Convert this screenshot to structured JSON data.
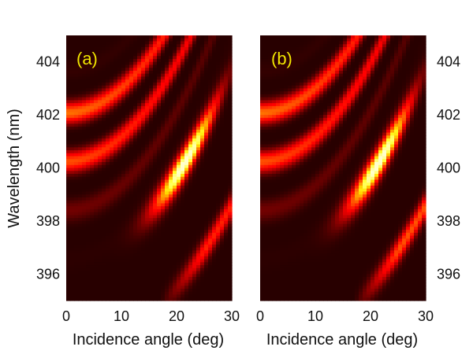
{
  "chart_data": [
    {
      "type": "heatmap",
      "panel_label": "(a)",
      "xlabel": "Incidence angle (deg)",
      "ylabel": "Wavelength (nm)",
      "xlim": [
        0,
        30
      ],
      "ylim": [
        395,
        405
      ],
      "xticks": [
        "0",
        "10",
        "20",
        "30"
      ],
      "yticks": [
        "396",
        "398",
        "400",
        "402",
        "404"
      ],
      "yaxis_side": "left",
      "colormap": "hot",
      "grid": false
    },
    {
      "type": "heatmap",
      "panel_label": "(b)",
      "xlabel": "Incidence angle (deg)",
      "ylabel": "",
      "xlim": [
        0,
        30
      ],
      "ylim": [
        395,
        405
      ],
      "xticks": [
        "0",
        "10",
        "20",
        "30"
      ],
      "yticks": [
        "396",
        "398",
        "400",
        "402",
        "404"
      ],
      "yaxis_side": "right",
      "colormap": "hot",
      "grid": false
    }
  ],
  "colors": {
    "panel_label": "#f2e600",
    "background": "#1e0000"
  }
}
